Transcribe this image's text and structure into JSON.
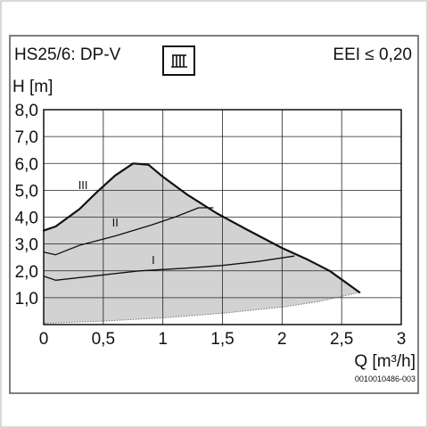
{
  "header": {
    "model": "HS25/6: DP-V",
    "eei": "EEI ≤ 0,20",
    "mode_icon": "bar-pattern-icon"
  },
  "image_code": "0010010486-003",
  "chart_data": {
    "type": "area",
    "xlabel": "Q [m³/h]",
    "ylabel": "H [m]",
    "xlim": [
      0,
      3
    ],
    "ylim": [
      0,
      8
    ],
    "grid": true,
    "x_ticks": [
      {
        "value": 0,
        "label": "0"
      },
      {
        "value": 0.5,
        "label": "0,5"
      },
      {
        "value": 1,
        "label": "1"
      },
      {
        "value": 1.5,
        "label": "1,5"
      },
      {
        "value": 2,
        "label": "2"
      },
      {
        "value": 2.5,
        "label": "2,5"
      },
      {
        "value": 3,
        "label": "3"
      }
    ],
    "y_ticks": [
      {
        "value": 1,
        "label": "1,0"
      },
      {
        "value": 2,
        "label": "2,0"
      },
      {
        "value": 3,
        "label": "3,0"
      },
      {
        "value": 4,
        "label": "4,0"
      },
      {
        "value": 5,
        "label": "5,0"
      },
      {
        "value": 6,
        "label": "6,0"
      },
      {
        "value": 7,
        "label": "7,0"
      },
      {
        "value": 8,
        "label": "8,0"
      }
    ],
    "envelope_upper": [
      [
        0,
        3.5
      ],
      [
        0.1,
        3.65
      ],
      [
        0.3,
        4.3
      ],
      [
        0.45,
        4.95
      ],
      [
        0.6,
        5.55
      ],
      [
        0.75,
        6.0
      ],
      [
        0.88,
        5.95
      ],
      [
        1.0,
        5.5
      ],
      [
        1.2,
        4.85
      ],
      [
        1.45,
        4.15
      ],
      [
        1.7,
        3.55
      ],
      [
        2.0,
        2.85
      ],
      [
        2.2,
        2.45
      ],
      [
        2.4,
        2.0
      ],
      [
        2.65,
        1.2
      ]
    ],
    "envelope_lower": [
      [
        2.65,
        1.2
      ],
      [
        2.3,
        0.85
      ],
      [
        2.0,
        0.65
      ],
      [
        1.5,
        0.42
      ],
      [
        1.0,
        0.25
      ],
      [
        0.5,
        0.13
      ],
      [
        0,
        0.05
      ]
    ],
    "series": [
      {
        "name": "III",
        "points": [
          [
            0,
            3.5
          ],
          [
            0.1,
            3.65
          ],
          [
            0.3,
            4.3
          ],
          [
            0.45,
            4.95
          ],
          [
            0.6,
            5.55
          ],
          [
            0.75,
            6.0
          ],
          [
            0.88,
            5.95
          ],
          [
            1.0,
            5.5
          ],
          [
            1.2,
            4.85
          ],
          [
            1.45,
            4.15
          ],
          [
            1.7,
            3.55
          ],
          [
            2.0,
            2.85
          ],
          [
            2.2,
            2.45
          ],
          [
            2.4,
            2.0
          ],
          [
            2.65,
            1.2
          ]
        ],
        "label_at": [
          0.33,
          5.05
        ]
      },
      {
        "name": "II",
        "points": [
          [
            0,
            2.7
          ],
          [
            0.1,
            2.6
          ],
          [
            0.3,
            2.95
          ],
          [
            0.6,
            3.3
          ],
          [
            0.9,
            3.7
          ],
          [
            1.1,
            4.0
          ],
          [
            1.3,
            4.35
          ],
          [
            1.42,
            4.35
          ]
        ],
        "label_at": [
          0.6,
          3.65
        ]
      },
      {
        "name": "I",
        "points": [
          [
            0,
            1.8
          ],
          [
            0.1,
            1.65
          ],
          [
            0.4,
            1.8
          ],
          [
            0.8,
            2.0
          ],
          [
            1.2,
            2.1
          ],
          [
            1.5,
            2.2
          ],
          [
            1.8,
            2.35
          ],
          [
            2.1,
            2.55
          ]
        ],
        "label_at": [
          0.92,
          2.25
        ]
      }
    ]
  }
}
